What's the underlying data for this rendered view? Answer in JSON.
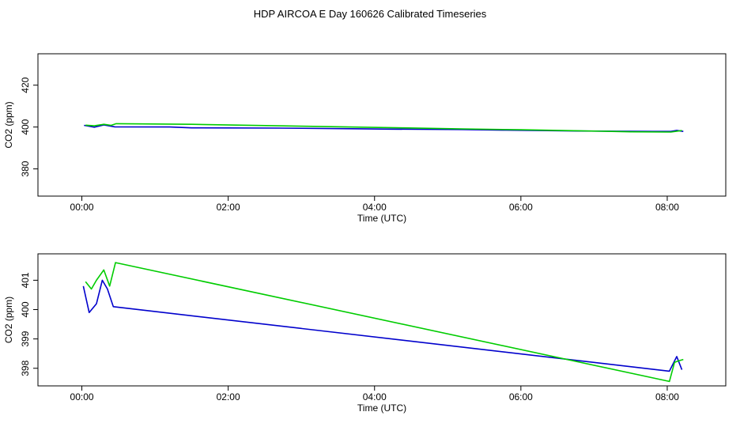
{
  "figure": {
    "title": "HDP AIRCOA E  Day 160626  Calibrated Timeseries"
  },
  "colors": {
    "series_1": "#0000cc",
    "series_2": "#00cc00",
    "axis": "#000000",
    "background": "#ffffff"
  },
  "chart_data": [
    {
      "type": "line",
      "xlabel": "Time (UTC)",
      "ylabel": "CO2 (ppm)",
      "xlim": [
        -0.6,
        8.8
      ],
      "ylim": [
        367,
        435
      ],
      "x_ticks": [
        0,
        2,
        4,
        6,
        8
      ],
      "x_tick_labels": [
        "00:00",
        "02:00",
        "04:00",
        "06:00",
        "08:00"
      ],
      "y_ticks": [
        380,
        400,
        420
      ],
      "y_tick_labels": [
        "380",
        "400",
        "420"
      ],
      "grid": false,
      "series": [
        {
          "x": [
            0.03,
            0.17,
            0.3,
            0.45,
            1.2,
            1.5,
            2.7,
            3.7,
            4.2,
            5.2,
            5.8,
            6.8,
            7.3,
            7.8,
            8.05,
            8.13,
            8.22
          ],
          "y": [
            400.8,
            399.9,
            401.0,
            400.1,
            400.0,
            399.6,
            399.5,
            399.2,
            399.0,
            398.8,
            398.5,
            398.1,
            398.0,
            397.9,
            397.9,
            398.4,
            397.9
          ]
        },
        {
          "x": [
            0.05,
            0.17,
            0.3,
            0.4,
            0.47,
            1.5,
            3.0,
            4.4,
            5.2,
            6.0,
            6.8,
            7.5,
            8.05,
            8.2
          ],
          "y": [
            400.9,
            400.6,
            401.3,
            400.8,
            401.6,
            401.3,
            400.4,
            399.6,
            399.1,
            398.7,
            398.2,
            397.7,
            397.6,
            398.3
          ]
        }
      ]
    },
    {
      "type": "line",
      "xlabel": "Time (UTC)",
      "ylabel": "CO2 (ppm)",
      "xlim": [
        -0.6,
        8.8
      ],
      "ylim": [
        397.4,
        401.9
      ],
      "x_ticks": [
        0,
        2,
        4,
        6,
        8
      ],
      "x_tick_labels": [
        "00:00",
        "02:00",
        "04:00",
        "06:00",
        "08:00"
      ],
      "y_ticks": [
        398,
        399,
        400,
        401
      ],
      "y_tick_labels": [
        "398",
        "399",
        "400",
        "401"
      ],
      "grid": false,
      "series": [
        {
          "x": [
            0.02,
            0.1,
            0.2,
            0.28,
            0.35,
            0.43,
            8.03,
            8.13,
            8.2
          ],
          "y": [
            400.8,
            399.9,
            400.2,
            401.0,
            400.7,
            400.1,
            397.9,
            398.4,
            397.95
          ]
        },
        {
          "x": [
            0.05,
            0.13,
            0.2,
            0.3,
            0.38,
            0.46,
            8.03,
            8.1,
            8.15,
            8.22
          ],
          "y": [
            400.95,
            400.7,
            401.0,
            401.35,
            400.8,
            401.6,
            397.55,
            398.2,
            398.25,
            398.3
          ]
        }
      ]
    }
  ]
}
